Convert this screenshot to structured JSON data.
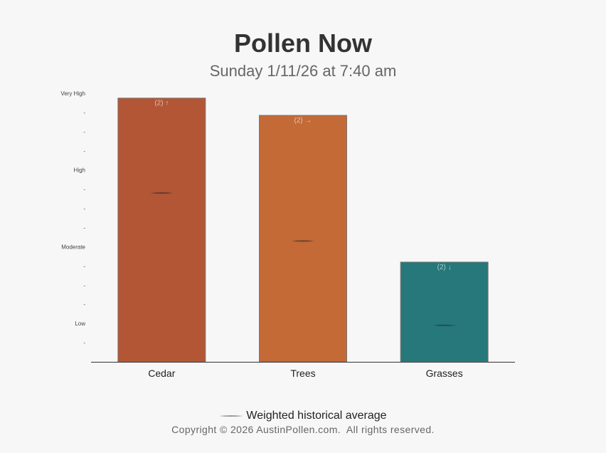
{
  "header": {
    "title": "Pollen Now",
    "subtitle": "Sunday 1/11/26 at 7:40 am"
  },
  "legend": {
    "label": "Weighted historical average"
  },
  "footer": {
    "copyright": "Copyright © 2026 AustinPollen.com.  All rights reserved."
  },
  "chart_data": {
    "type": "bar",
    "categories": [
      "Cedar",
      "Trees",
      "Grasses"
    ],
    "values": [
      13.75,
      12.85,
      5.2
    ],
    "historical_average": [
      8.8,
      6.3,
      1.9
    ],
    "bar_labels": [
      "(2) ↑",
      "(2) →",
      "(2) ↓"
    ],
    "colors": [
      "#b35636",
      "#c36a37",
      "#26787a"
    ],
    "ylim": [
      0,
      14
    ],
    "y_tick_labels": [
      {
        "value": 1,
        "label": "-"
      },
      {
        "value": 2,
        "label": "Low"
      },
      {
        "value": 3,
        "label": "-"
      },
      {
        "value": 4,
        "label": "-"
      },
      {
        "value": 5,
        "label": "-"
      },
      {
        "value": 6,
        "label": "Moderate"
      },
      {
        "value": 7,
        "label": "-"
      },
      {
        "value": 8,
        "label": "-"
      },
      {
        "value": 9,
        "label": "-"
      },
      {
        "value": 10,
        "label": "High"
      },
      {
        "value": 11,
        "label": "-"
      },
      {
        "value": 12,
        "label": "-"
      },
      {
        "value": 13,
        "label": "-"
      },
      {
        "value": 14,
        "label": "Very High"
      }
    ],
    "grid": false,
    "legend_position": "bottom"
  }
}
